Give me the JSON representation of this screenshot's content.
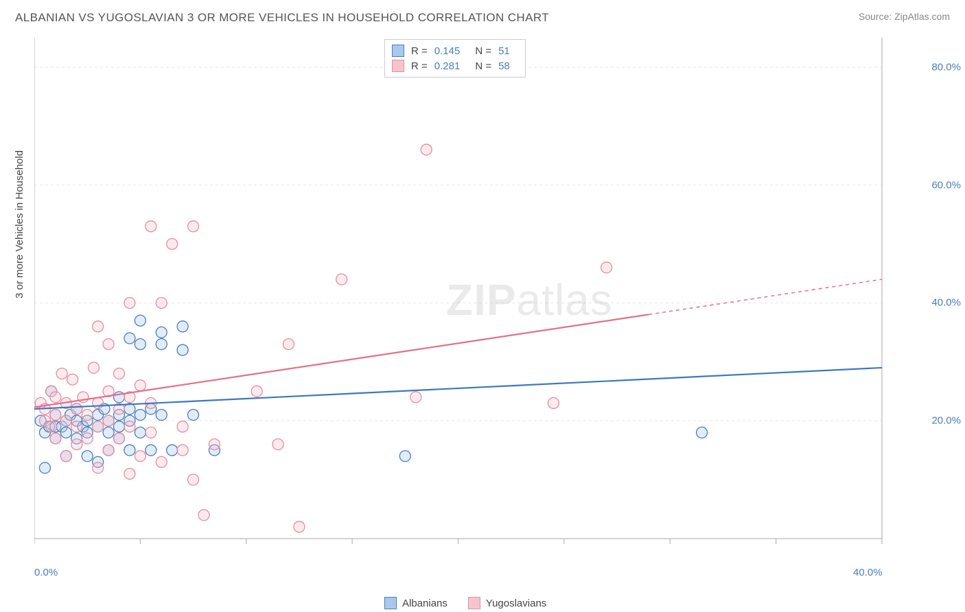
{
  "title": "ALBANIAN VS YUGOSLAVIAN 3 OR MORE VEHICLES IN HOUSEHOLD CORRELATION CHART",
  "source": "Source: ZipAtlas.com",
  "y_axis_label": "3 or more Vehicles in Household",
  "watermark_bold": "ZIP",
  "watermark_light": "atlas",
  "chart": {
    "type": "scatter",
    "background_color": "#ffffff",
    "grid_color": "#e6e6e6",
    "axis_color": "#bbbbbb",
    "tick_label_color": "#4a7ebb",
    "xlim": [
      0,
      40
    ],
    "ylim": [
      0,
      85
    ],
    "x_tick_positions": [
      0,
      5,
      10,
      15,
      20,
      25,
      30,
      35,
      40
    ],
    "x_tick_labels": {
      "0": "0.0%",
      "40": "40.0%"
    },
    "y_tick_positions": [
      20,
      40,
      60,
      80
    ],
    "y_tick_labels": {
      "20": "20.0%",
      "40": "40.0%",
      "60": "60.0%",
      "80": "80.0%"
    },
    "marker_radius": 8,
    "marker_fill_opacity": 0.35,
    "series": [
      {
        "name": "Albanians",
        "color_fill": "#a9c8ec",
        "color_stroke": "#4a7ebb",
        "line_color": "#3b78c4",
        "line_width": 2.2,
        "stats": {
          "R": "0.145",
          "N": "51"
        },
        "trend": {
          "x1": 0,
          "y1": 22.0,
          "x2": 40,
          "y2": 29.0,
          "solid_until_x": 40
        },
        "points": [
          [
            0.3,
            20
          ],
          [
            0.5,
            18
          ],
          [
            0.7,
            19
          ],
          [
            0.5,
            12
          ],
          [
            1.0,
            21
          ],
          [
            1.0,
            19
          ],
          [
            1.0,
            17
          ],
          [
            0.8,
            25
          ],
          [
            1.3,
            19
          ],
          [
            1.5,
            20
          ],
          [
            1.5,
            18
          ],
          [
            1.5,
            14
          ],
          [
            1.7,
            21
          ],
          [
            2.0,
            22
          ],
          [
            2.0,
            20
          ],
          [
            2.0,
            17
          ],
          [
            2.3,
            19
          ],
          [
            2.5,
            20
          ],
          [
            2.5,
            18
          ],
          [
            2.5,
            14
          ],
          [
            3.0,
            21
          ],
          [
            3.0,
            19
          ],
          [
            3.0,
            13
          ],
          [
            3.3,
            22
          ],
          [
            3.5,
            20
          ],
          [
            3.5,
            18
          ],
          [
            3.5,
            15
          ],
          [
            4.0,
            24
          ],
          [
            4.0,
            21
          ],
          [
            4.0,
            19
          ],
          [
            4.0,
            17
          ],
          [
            4.5,
            34
          ],
          [
            4.5,
            22
          ],
          [
            4.5,
            20
          ],
          [
            4.5,
            15
          ],
          [
            5.0,
            37
          ],
          [
            5.0,
            33
          ],
          [
            5.0,
            21
          ],
          [
            5.0,
            18
          ],
          [
            5.5,
            22
          ],
          [
            5.5,
            15
          ],
          [
            6.0,
            35
          ],
          [
            6.0,
            33
          ],
          [
            6.0,
            21
          ],
          [
            6.5,
            15
          ],
          [
            7.0,
            36
          ],
          [
            7.0,
            32
          ],
          [
            7.5,
            21
          ],
          [
            8.5,
            15
          ],
          [
            17.5,
            14
          ],
          [
            31.5,
            18
          ]
        ]
      },
      {
        "name": "Yugoslavians",
        "color_fill": "#f6c4cf",
        "color_stroke": "#e58da1",
        "line_color": "#e36f8a",
        "line_width": 2.2,
        "stats": {
          "R": "0.281",
          "N": "58"
        },
        "trend": {
          "x1": 0,
          "y1": 22.3,
          "x2": 40,
          "y2": 44.0,
          "solid_until_x": 29
        },
        "points": [
          [
            0.3,
            23
          ],
          [
            0.5,
            22
          ],
          [
            0.5,
            20
          ],
          [
            0.8,
            25
          ],
          [
            0.8,
            19
          ],
          [
            1.0,
            24
          ],
          [
            1.0,
            21
          ],
          [
            1.0,
            17
          ],
          [
            1.3,
            28
          ],
          [
            1.5,
            23
          ],
          [
            1.5,
            20
          ],
          [
            1.5,
            14
          ],
          [
            1.8,
            27
          ],
          [
            2.0,
            22
          ],
          [
            2.0,
            19
          ],
          [
            2.0,
            16
          ],
          [
            2.3,
            24
          ],
          [
            2.5,
            21
          ],
          [
            2.5,
            17
          ],
          [
            2.8,
            29
          ],
          [
            3.0,
            36
          ],
          [
            3.0,
            23
          ],
          [
            3.0,
            19
          ],
          [
            3.0,
            12
          ],
          [
            3.5,
            33
          ],
          [
            3.5,
            25
          ],
          [
            3.5,
            20
          ],
          [
            3.5,
            15
          ],
          [
            4.0,
            28
          ],
          [
            4.0,
            22
          ],
          [
            4.0,
            17
          ],
          [
            4.5,
            40
          ],
          [
            4.5,
            24
          ],
          [
            4.5,
            19
          ],
          [
            4.5,
            11
          ],
          [
            5.0,
            26
          ],
          [
            5.0,
            14
          ],
          [
            5.5,
            53
          ],
          [
            5.5,
            23
          ],
          [
            5.5,
            18
          ],
          [
            6.0,
            40
          ],
          [
            6.0,
            13
          ],
          [
            6.5,
            50
          ],
          [
            7.0,
            19
          ],
          [
            7.0,
            15
          ],
          [
            7.5,
            53
          ],
          [
            7.5,
            10
          ],
          [
            8.0,
            4
          ],
          [
            8.5,
            16
          ],
          [
            10.5,
            25
          ],
          [
            11.5,
            16
          ],
          [
            12.0,
            33
          ],
          [
            12.5,
            2
          ],
          [
            14.5,
            44
          ],
          [
            18.0,
            24
          ],
          [
            18.5,
            66
          ],
          [
            24.5,
            23
          ],
          [
            27.0,
            46
          ]
        ]
      }
    ]
  },
  "bottom_legend": [
    {
      "label": "Albanians",
      "fill": "#a9c8ec",
      "stroke": "#4a7ebb"
    },
    {
      "label": "Yugoslavians",
      "fill": "#f6c4cf",
      "stroke": "#e58da1"
    }
  ]
}
